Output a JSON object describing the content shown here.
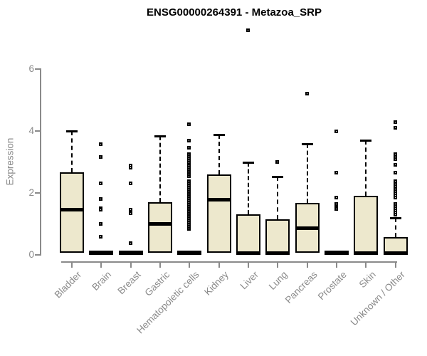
{
  "chart_data": {
    "type": "boxplot",
    "title": "ENSG00000264391 - Metazoa_SRP",
    "ylabel": "Expression",
    "xlabel": "",
    "ylim": [
      0,
      6
    ],
    "yticks": [
      0,
      2,
      4,
      6
    ],
    "grid": false,
    "legend": false,
    "colors": {
      "box_fill": "#EDE8CD",
      "box_border": "#000000",
      "median": "#000000",
      "axis": "#8A8A8A",
      "title": "#000000"
    },
    "categories": [
      "Bladder",
      "Brain",
      "Breast",
      "Gastric",
      "Hematopoietic cells",
      "Kidney",
      "Liver",
      "Lung",
      "Pancreas",
      "Prostate",
      "Skin",
      "Unknown / Other"
    ],
    "boxes": [
      {
        "category": "Bladder",
        "q1": 0.07,
        "median": 1.45,
        "q3": 2.67,
        "whisker_low": 0.07,
        "whisker_high": 4.0,
        "outliers": []
      },
      {
        "category": "Brain",
        "q1": 0,
        "median": 0.02,
        "q3": 0.06,
        "whisker_low": 0,
        "whisker_high": 0.06,
        "outliers": [
          3.56,
          3.16,
          2.31,
          1.79,
          1.49,
          1.44,
          0.99,
          0.57
        ]
      },
      {
        "category": "Breast",
        "q1": 0,
        "median": 0.02,
        "q3": 0.06,
        "whisker_low": 0,
        "whisker_high": 0.06,
        "outliers": [
          2.87,
          2.8,
          2.31,
          1.45,
          1.33,
          0.37
        ]
      },
      {
        "category": "Gastric",
        "q1": 0.08,
        "median": 1.01,
        "q3": 1.69,
        "whisker_low": 0.08,
        "whisker_high": 3.83,
        "outliers": []
      },
      {
        "category": "Hematopoietic cells",
        "q1": 0,
        "median": 0.02,
        "q3": 0.06,
        "whisker_low": 0,
        "whisker_high": 0.06,
        "outliers": [
          4.21,
          3.67,
          3.44,
          3.25,
          3.18,
          3.1,
          3.03,
          2.96,
          2.88,
          2.81,
          2.74,
          2.66,
          2.59,
          2.52,
          2.37,
          2.3,
          2.23,
          2.16,
          2.09,
          2.02,
          1.95,
          1.88,
          1.81,
          1.74,
          1.67,
          1.6,
          1.53,
          1.46,
          1.39,
          1.32,
          1.25,
          1.18,
          1.11,
          1.04,
          0.97,
          0.9,
          0.83
        ]
      },
      {
        "category": "Kidney",
        "q1": 0.08,
        "median": 1.79,
        "q3": 2.59,
        "whisker_low": 0.08,
        "whisker_high": 3.89,
        "outliers": []
      },
      {
        "category": "Liver",
        "q1": 0,
        "median": 0.02,
        "q3": 1.32,
        "whisker_low": 0,
        "whisker_high": 3.0,
        "outliers": [
          7.24
        ]
      },
      {
        "category": "Lung",
        "q1": 0,
        "median": 0.02,
        "q3": 1.16,
        "whisker_low": 0,
        "whisker_high": 2.54,
        "outliers": [
          3.0
        ]
      },
      {
        "category": "Pancreas",
        "q1": 0.07,
        "median": 0.87,
        "q3": 1.68,
        "whisker_low": 0.07,
        "whisker_high": 3.59,
        "outliers": [
          5.2
        ]
      },
      {
        "category": "Prostate",
        "q1": 0,
        "median": 0.02,
        "q3": 0.06,
        "whisker_low": 0,
        "whisker_high": 0.06,
        "outliers": [
          3.98,
          2.64,
          1.83,
          1.64,
          1.52,
          1.47
        ]
      },
      {
        "category": "Skin",
        "q1": 0,
        "median": 0.02,
        "q3": 1.91,
        "whisker_low": 0,
        "whisker_high": 3.69,
        "outliers": []
      },
      {
        "category": "Unknown / Other",
        "q1": 0,
        "median": 0.05,
        "q3": 0.57,
        "whisker_low": 0,
        "whisker_high": 1.2,
        "outliers": [
          4.28,
          4.09,
          3.25,
          3.15,
          3.08,
          2.9,
          2.64,
          2.37,
          2.28,
          2.2,
          2.12,
          2.05,
          1.98,
          1.91,
          1.84,
          1.64,
          1.57,
          1.5,
          1.43,
          1.36,
          1.29
        ]
      }
    ]
  }
}
